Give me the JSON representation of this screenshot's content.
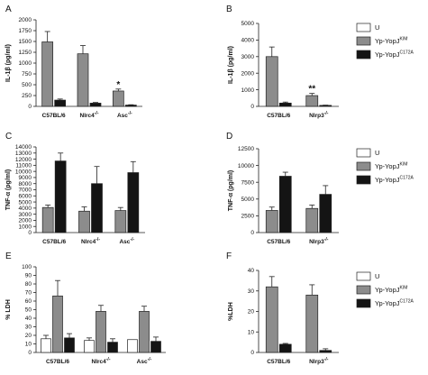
{
  "figure": {
    "legend": {
      "entries": [
        {
          "label": "U",
          "color": "#ffffff"
        },
        {
          "label": "Yp-YopJ",
          "sup": "KIM",
          "color": "#8c8c8c"
        },
        {
          "label": "Yp-YopJ",
          "sup": "C172A",
          "color": "#141414"
        }
      ]
    }
  },
  "chart_data": [
    {
      "panel": "A",
      "type": "bar",
      "ylabel": "IL-1β (pg/ml)",
      "ylim": [
        0,
        2000
      ],
      "yticks": [
        0,
        250,
        500,
        750,
        1000,
        1250,
        1500,
        1750,
        2000
      ],
      "categories": [
        {
          "label": "C57BL/6",
          "sup": ""
        },
        {
          "label": "Nlrc4",
          "sup": "-/-"
        },
        {
          "label": "Asc",
          "sup": "-/-"
        }
      ],
      "series": [
        {
          "color": "#8c8c8c",
          "values": [
            1490,
            1215,
            355
          ],
          "errors": [
            240,
            190,
            45
          ]
        },
        {
          "color": "#141414",
          "values": [
            145,
            75,
            30
          ],
          "errors": [
            25,
            15,
            8
          ]
        }
      ],
      "annotations": [
        {
          "category": 2,
          "series": 0,
          "text": "*"
        }
      ]
    },
    {
      "panel": "B",
      "type": "bar",
      "ylabel": "IL-1β (pg/ml)",
      "ylim": [
        0,
        5000
      ],
      "yticks": [
        0,
        1000,
        2000,
        3000,
        4000,
        5000
      ],
      "categories": [
        {
          "label": "C57BL/6",
          "sup": ""
        },
        {
          "label": "Nlrp3",
          "sup": "-/-"
        }
      ],
      "series": [
        {
          "color": "#8c8c8c",
          "values": [
            3000,
            650
          ],
          "errors": [
            580,
            130
          ]
        },
        {
          "color": "#141414",
          "values": [
            200,
            60
          ],
          "errors": [
            60,
            15
          ]
        }
      ],
      "annotations": [
        {
          "category": 1,
          "series": 0,
          "text": "**"
        }
      ]
    },
    {
      "panel": "C",
      "type": "bar",
      "ylabel": "TNF-α (pg/ml)",
      "ylim": [
        0,
        14000
      ],
      "yticks": [
        0,
        1000,
        2000,
        3000,
        4000,
        5000,
        6000,
        7000,
        8000,
        9000,
        10000,
        11000,
        12000,
        13000,
        14000
      ],
      "categories": [
        {
          "label": "C57BL/6",
          "sup": ""
        },
        {
          "label": "Nlrc4",
          "sup": "-/-"
        },
        {
          "label": "Asc",
          "sup": "-/-"
        }
      ],
      "series": [
        {
          "color": "#8c8c8c",
          "values": [
            4100,
            3500,
            3600
          ],
          "errors": [
            400,
            700,
            500
          ]
        },
        {
          "color": "#141414",
          "values": [
            11700,
            8000,
            9800
          ],
          "errors": [
            1300,
            2800,
            1800
          ]
        }
      ],
      "annotations": []
    },
    {
      "panel": "D",
      "type": "bar",
      "ylabel": "TNF-α (pg/ml)",
      "ylim": [
        0,
        12500
      ],
      "yticks": [
        0,
        2500,
        5000,
        7500,
        10000,
        12500
      ],
      "categories": [
        {
          "label": "C57BL/6",
          "sup": ""
        },
        {
          "label": "Nlrp3",
          "sup": "-/-"
        }
      ],
      "series": [
        {
          "color": "#8c8c8c",
          "values": [
            3300,
            3600
          ],
          "errors": [
            500,
            500
          ]
        },
        {
          "color": "#141414",
          "values": [
            8400,
            5700
          ],
          "errors": [
            600,
            1300
          ]
        }
      ],
      "annotations": []
    },
    {
      "panel": "E",
      "type": "bar",
      "ylabel": "% LDH",
      "ylim": [
        0,
        100
      ],
      "yticks": [
        0,
        10,
        20,
        30,
        40,
        50,
        60,
        70,
        80,
        90,
        100
      ],
      "categories": [
        {
          "label": "C57BL/6",
          "sup": ""
        },
        {
          "label": "Nlrc4",
          "sup": "-/-"
        },
        {
          "label": "Asc",
          "sup": "-/-"
        }
      ],
      "series": [
        {
          "color": "#ffffff",
          "values": [
            16,
            14,
            15
          ],
          "errors": [
            4,
            3,
            0
          ]
        },
        {
          "color": "#8c8c8c",
          "values": [
            66,
            48,
            48
          ],
          "errors": [
            18,
            7,
            6
          ]
        },
        {
          "color": "#141414",
          "values": [
            17,
            12,
            13
          ],
          "errors": [
            5,
            4,
            5
          ]
        }
      ],
      "annotations": []
    },
    {
      "panel": "F",
      "type": "bar",
      "ylabel": "%LDH",
      "ylim": [
        0,
        40
      ],
      "yticks": [
        0,
        10,
        20,
        30,
        40
      ],
      "categories": [
        {
          "label": "C57BL/6",
          "sup": ""
        },
        {
          "label": "Nlrp3",
          "sup": "-/-"
        }
      ],
      "series": [
        {
          "color": "#8c8c8c",
          "values": [
            32,
            28
          ],
          "errors": [
            5,
            5
          ]
        },
        {
          "color": "#141414",
          "values": [
            4,
            1
          ],
          "errors": [
            0.4,
            0.8
          ]
        }
      ],
      "annotations": []
    }
  ]
}
